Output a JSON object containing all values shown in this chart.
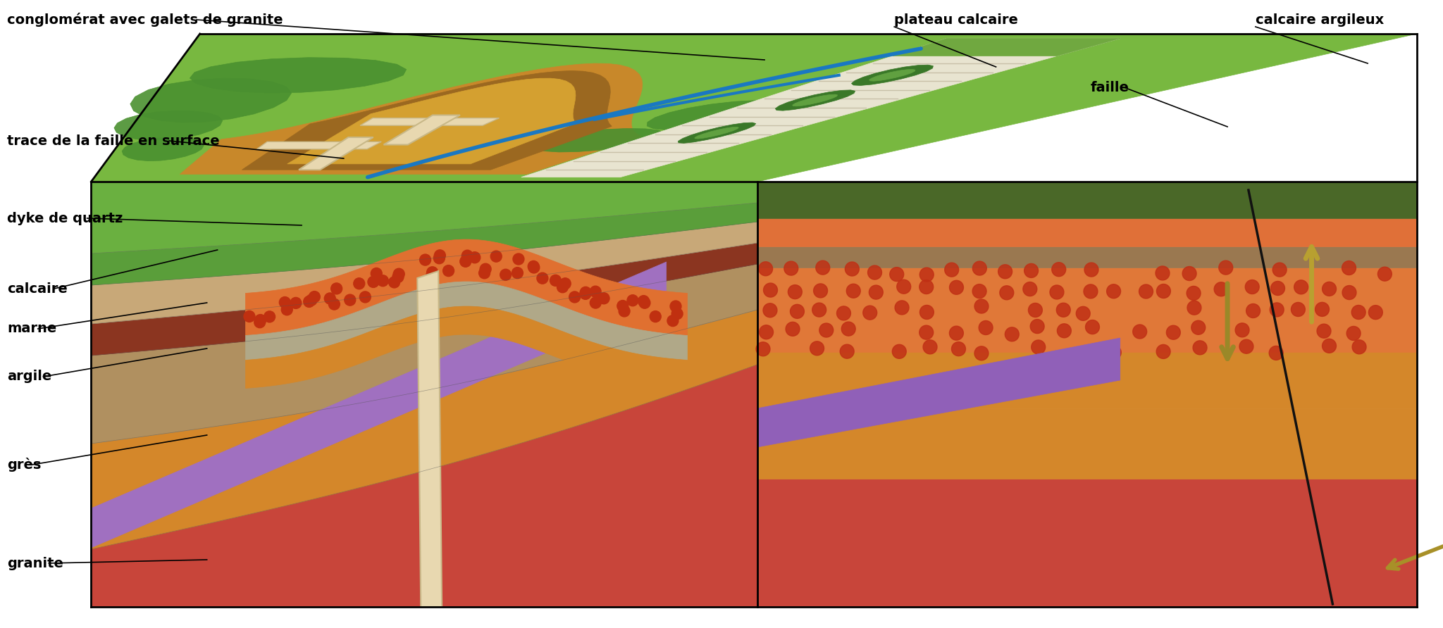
{
  "bg": "#ffffff",
  "labels": {
    "conglomerat": "conglomérat avec galets de granite",
    "trace_faille": "trace de la faille en surface",
    "dyke_quartz": "dyke de quartz",
    "calcaire": "calcaire",
    "marne": "marne",
    "argile": "argile",
    "gres": "grès",
    "granite": "granite",
    "plateau_calcaire": "plateau calcaire",
    "calcaire_argileux": "calcaire argileux",
    "faille": "faille"
  },
  "fontsize": 14
}
